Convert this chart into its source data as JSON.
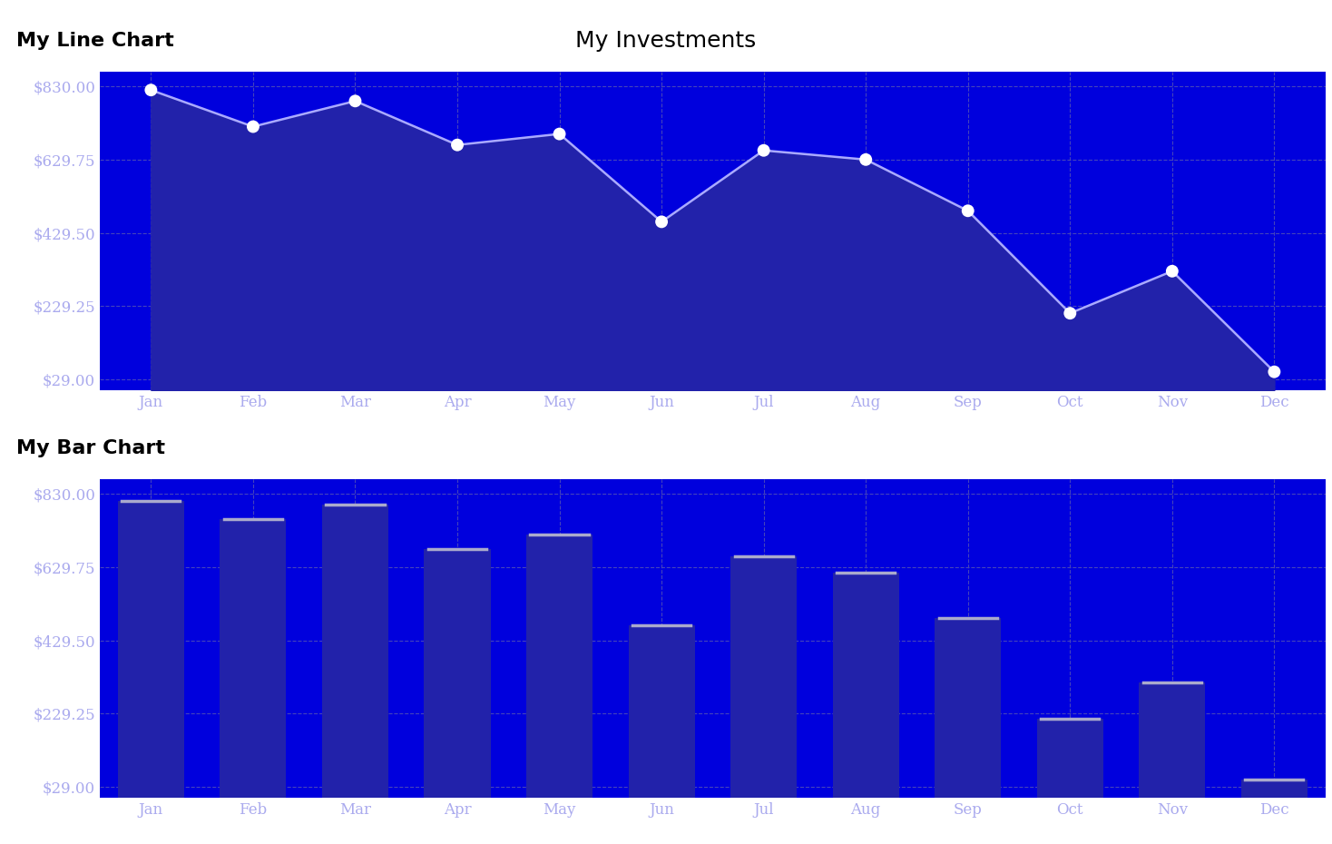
{
  "title": "My Investments",
  "line_chart_label": "My Line Chart",
  "bar_chart_label": "My Bar Chart",
  "months": [
    "Jan",
    "Feb",
    "Mar",
    "Apr",
    "May",
    "Jun",
    "Jul",
    "Aug",
    "Sep",
    "Oct",
    "Nov",
    "Dec"
  ],
  "line_values": [
    820,
    720,
    790,
    670,
    700,
    460,
    655,
    630,
    490,
    210,
    325,
    50
  ],
  "bar_values": [
    810,
    760,
    800,
    680,
    720,
    470,
    660,
    615,
    490,
    215,
    315,
    50
  ],
  "yticks": [
    29.0,
    229.25,
    429.5,
    629.75,
    830.0
  ],
  "ytick_labels": [
    "$29.00",
    "$229.25",
    "$429.50",
    "$629.75",
    "$830.00"
  ],
  "ymin": 0,
  "ymax": 870,
  "bg_color": "#0000dd",
  "line_color": "#aaaaff",
  "line_fill_color": "#2222aa",
  "marker_color": "#ffffff",
  "bar_color": "#2222aa",
  "bar_top_color": "#aaaacc",
  "grid_color": "#4444bb",
  "title_color": "#000000",
  "label_color": "#000000",
  "tick_label_color": "#aaaaee",
  "fig_bg": "#ffffff"
}
